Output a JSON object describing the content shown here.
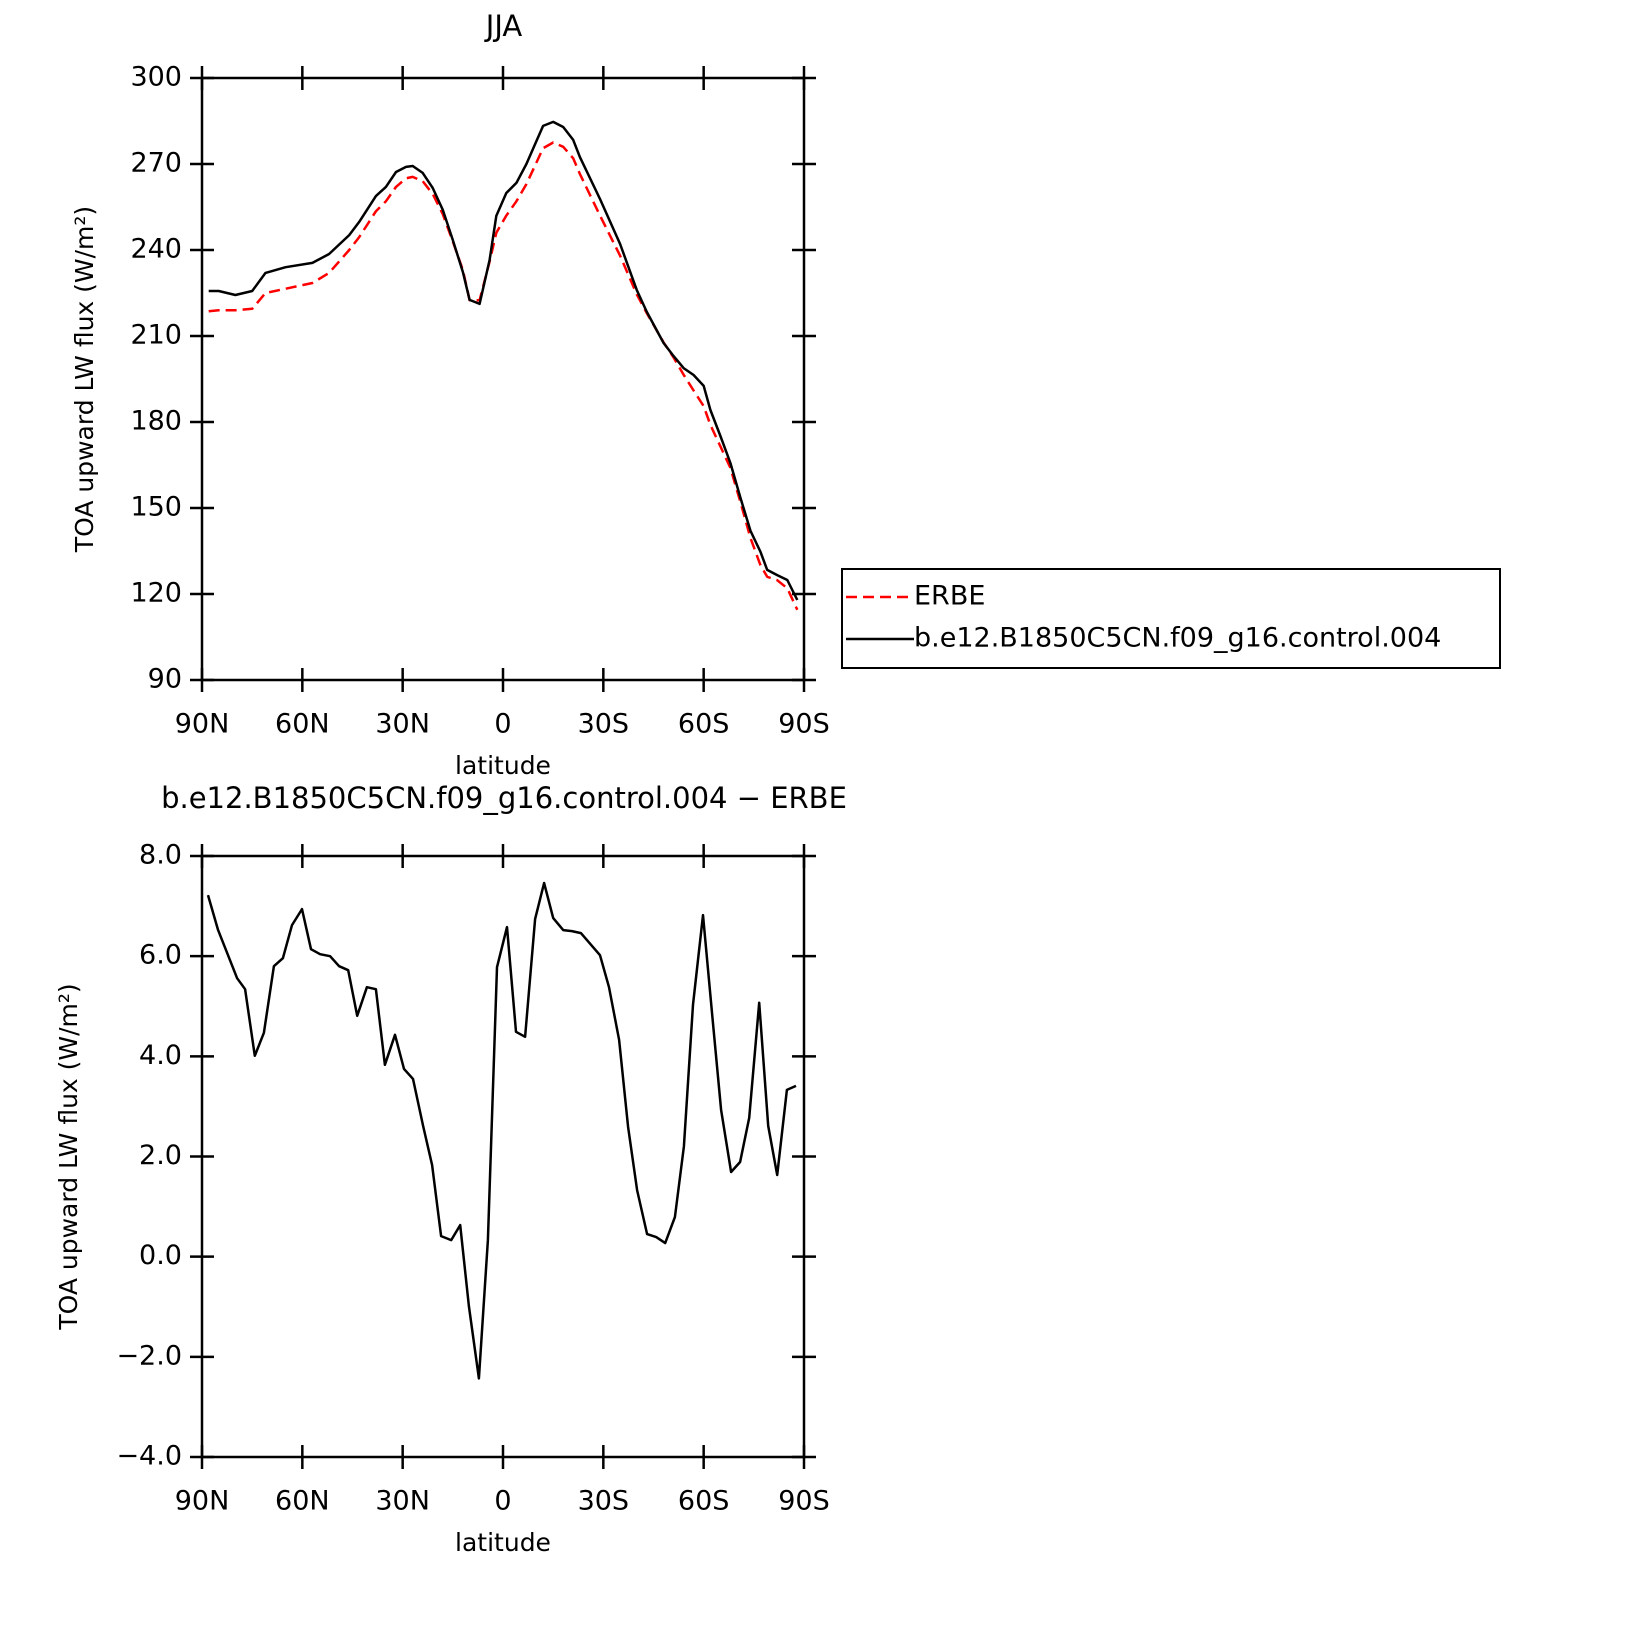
{
  "chart_data": [
    {
      "type": "line",
      "title": "JJA",
      "xlabel": "latitude",
      "ylabel": "TOA upward LW flux (W/m²)",
      "xlim": [
        90,
        -90
      ],
      "xticks": [
        {
          "value": 90,
          "label": "90N"
        },
        {
          "value": 60,
          "label": "60N"
        },
        {
          "value": 30,
          "label": "30N"
        },
        0,
        {
          "value": -30,
          "label": "30S"
        },
        {
          "value": -60,
          "label": "60S"
        },
        {
          "value": -90,
          "label": "90S"
        }
      ],
      "ylim": [
        90,
        300
      ],
      "yticks": [
        90,
        120,
        150,
        180,
        210,
        240,
        270,
        300
      ],
      "legend": "right",
      "x": [
        88,
        85,
        80,
        75,
        71,
        65,
        57,
        52,
        46,
        43,
        38,
        35,
        32,
        29,
        27,
        24,
        21,
        18,
        15,
        12,
        10,
        7,
        4,
        2,
        -1,
        -4,
        -7,
        -10,
        -12,
        -15,
        -18,
        -21,
        -23,
        -29,
        -35,
        -40,
        -43,
        -48,
        -51,
        -54,
        -57,
        -60,
        -62,
        -65,
        -68,
        -71,
        -74,
        -77,
        -79,
        -82,
        -85,
        -88
      ],
      "series": [
        {
          "name": "ERBE",
          "color": "#ff0000",
          "style": "dashed",
          "values": [
            218.6,
            219,
            219,
            219.5,
            225,
            226.5,
            228.5,
            232,
            240,
            244.5,
            253.5,
            257,
            262,
            265,
            265.5,
            264,
            259.5,
            252.5,
            243,
            233,
            222.5,
            222.5,
            236,
            246,
            252,
            257,
            263,
            270.5,
            275.5,
            277.5,
            276,
            272,
            266.5,
            252,
            238,
            224.5,
            218,
            207.8,
            202.5,
            196.5,
            191,
            185.5,
            179,
            171.5,
            164,
            152,
            139.5,
            130,
            126,
            124.8,
            122,
            114.5
          ]
        },
        {
          "name": "b.e12.B1850C5CN.f09_g16.control.004",
          "color": "#000000",
          "style": "solid",
          "values": [
            225.7,
            225.7,
            224.3,
            225.7,
            232,
            234,
            235.5,
            238.6,
            245.2,
            249.8,
            258.8,
            262,
            267.2,
            269,
            269.3,
            266.9,
            261.6,
            254,
            243.5,
            232.3,
            222.6,
            221.2,
            236.5,
            251.9,
            259.9,
            263.4,
            270,
            278,
            283.3,
            284.7,
            282.9,
            278.4,
            272.4,
            257.8,
            242.1,
            226,
            218.4,
            207.6,
            203,
            198.8,
            196.4,
            192.6,
            184.2,
            175.1,
            165.7,
            153.5,
            142,
            134.7,
            128.4,
            126.6,
            124.9,
            117.9
          ]
        }
      ]
    },
    {
      "type": "line",
      "title": "b.e12.B1850C5CN.f09_g16.control.004 − ERBE",
      "xlabel": "latitude",
      "ylabel": "TOA upward LW flux (W/m²)",
      "xlim": [
        90,
        -90
      ],
      "xticks": [
        {
          "value": 90,
          "label": "90N"
        },
        {
          "value": 60,
          "label": "60N"
        },
        {
          "value": 30,
          "label": "30N"
        },
        0,
        {
          "value": -30,
          "label": "30S"
        },
        {
          "value": -60,
          "label": "60S"
        },
        {
          "value": -90,
          "label": "90S"
        }
      ],
      "ylim": [
        -4,
        8
      ],
      "yticks": [
        {
          "value": -4,
          "label": "−4.0"
        },
        {
          "value": -2,
          "label": "−2.0"
        },
        {
          "value": 0,
          "label": "0.0"
        },
        {
          "value": 2,
          "label": "2.0"
        },
        {
          "value": 4,
          "label": "4.0"
        },
        {
          "value": 6,
          "label": "6.0"
        },
        {
          "value": 8,
          "label": "8.0"
        }
      ],
      "x": [
        88.2,
        85.2,
        79.5,
        77.1,
        74.2,
        71.5,
        68.5,
        65.8,
        63.1,
        60.1,
        57.4,
        54.7,
        51.7,
        49.0,
        46.3,
        43.6,
        40.7,
        38.0,
        35.3,
        32.3,
        29.6,
        26.9,
        23.9,
        21.2,
        18.5,
        15.5,
        12.8,
        10.2,
        7.2,
        4.5,
        1.8,
        -1.2,
        -3.9,
        -6.6,
        -9.6,
        -12.3,
        -15.0,
        -18.0,
        -20.6,
        -23.3,
        -29.0,
        -31.7,
        -34.7,
        -37.4,
        -40.1,
        -43.1,
        -45.8,
        -48.5,
        -51.4,
        -54.1,
        -56.8,
        -59.8,
        -62.5,
        -65.2,
        -68.2,
        -70.9,
        -73.6,
        -76.6,
        -79.3,
        -82.0,
        -84.9,
        -87.6
      ],
      "series": [
        {
          "color": "#000000",
          "style": "solid",
          "values": [
            7.22,
            6.52,
            5.56,
            5.34,
            4.01,
            4.47,
            5.8,
            5.96,
            6.62,
            6.94,
            6.14,
            6.04,
            6.0,
            5.8,
            5.72,
            4.81,
            5.38,
            5.34,
            3.83,
            4.43,
            3.75,
            3.55,
            2.61,
            1.83,
            0.41,
            0.33,
            0.63,
            -0.99,
            -2.43,
            0.33,
            5.78,
            6.58,
            4.49,
            4.39,
            6.74,
            7.46,
            6.76,
            6.52,
            6.5,
            6.46,
            6.02,
            5.38,
            4.33,
            2.59,
            1.33,
            0.45,
            0.39,
            0.27,
            0.79,
            2.2,
            5.03,
            6.82,
            4.87,
            2.93,
            1.69,
            1.89,
            2.77,
            5.07,
            2.61,
            1.63,
            3.33,
            3.41
          ]
        }
      ]
    }
  ]
}
